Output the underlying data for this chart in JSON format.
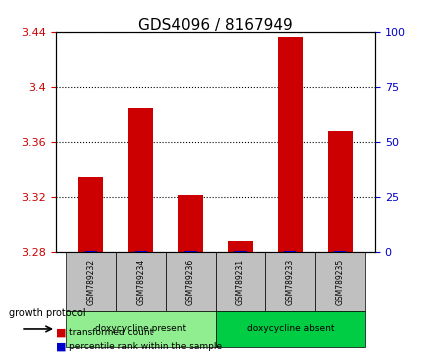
{
  "title": "GDS4096 / 8167949",
  "samples": [
    "GSM789232",
    "GSM789234",
    "GSM789236",
    "GSM789231",
    "GSM789233",
    "GSM789235"
  ],
  "red_values": [
    3.335,
    3.385,
    3.322,
    3.288,
    3.436,
    3.368
  ],
  "blue_values": [
    0.8,
    0.8,
    0.8,
    0.8,
    0.8,
    0.8
  ],
  "ylim_left": [
    3.28,
    3.44
  ],
  "ylim_right": [
    0,
    100
  ],
  "yticks_left": [
    3.28,
    3.32,
    3.36,
    3.4,
    3.44
  ],
  "yticks_right": [
    0,
    25,
    50,
    75,
    100
  ],
  "ytick_labels_left": [
    "3.28",
    "3.32",
    "3.36",
    "3.4",
    "3.44"
  ],
  "ytick_labels_right": [
    "0",
    "25",
    "50",
    "75",
    "100"
  ],
  "groups": [
    {
      "label": "doxycycline present",
      "indices": [
        0,
        1,
        2
      ],
      "color": "#90EE90"
    },
    {
      "label": "doxycycline absent",
      "indices": [
        3,
        4,
        5
      ],
      "color": "#00CC44"
    }
  ],
  "group_row_label": "growth protocol",
  "bar_color_red": "#CC0000",
  "bar_color_blue": "#0000CC",
  "bar_width": 0.5,
  "background_color": "#ffffff",
  "plot_bg_color": "#ffffff",
  "grid_color": "#000000",
  "title_color": "#000000",
  "title_fontsize": 11,
  "tick_label_color_left": "#CC0000",
  "tick_label_color_right": "#0000CC"
}
